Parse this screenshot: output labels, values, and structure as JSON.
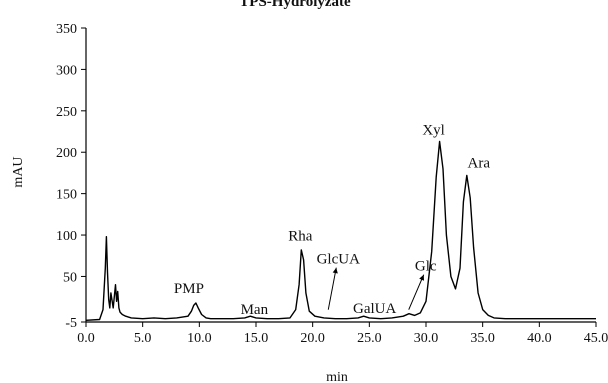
{
  "chart_data": {
    "type": "line",
    "title": "TPS-Hydrolyzate",
    "xlabel": "min",
    "ylabel": "mAU",
    "xlim": [
      0,
      45
    ],
    "ylim": [
      -5,
      350
    ],
    "xticks": [
      "0.0",
      "5.0",
      "10.0",
      "15.0",
      "20.0",
      "25.0",
      "30.0",
      "35.0",
      "40.0",
      "45.0"
    ],
    "yticks": [
      "-5",
      "50",
      "100",
      "150",
      "200",
      "250",
      "300",
      "350"
    ],
    "grid": false,
    "series": [
      {
        "x": [
          0.0,
          1.2,
          1.5,
          1.7,
          1.8,
          1.9,
          2.0,
          2.1,
          2.2,
          2.4,
          2.6,
          2.7,
          2.8,
          2.9,
          3.0,
          3.2,
          3.5,
          4.0,
          5.0,
          6.0,
          7.0,
          8.0,
          9.0,
          9.3,
          9.5,
          9.7,
          9.9,
          10.2,
          10.6,
          11.0,
          12.0,
          13.0,
          14.0,
          14.5,
          15.0,
          16.0,
          17.0,
          18.0,
          18.5,
          18.8,
          19.0,
          19.2,
          19.4,
          19.7,
          20.2,
          21.0,
          22.0,
          23.0,
          24.0,
          24.5,
          25.0,
          26.0,
          27.0,
          28.0,
          28.5,
          29.0,
          29.5,
          30.0,
          30.5,
          30.9,
          31.2,
          31.5,
          31.8,
          32.2,
          32.6,
          33.0,
          33.3,
          33.6,
          33.9,
          34.2,
          34.6,
          35.0,
          35.5,
          36.0,
          37.0,
          38.0,
          40.0,
          42.0,
          44.0,
          45.0
        ],
        "values": [
          -3,
          -2,
          10,
          60,
          98,
          55,
          22,
          12,
          30,
          12,
          40,
          20,
          32,
          12,
          7,
          4,
          2,
          0,
          -1,
          0,
          -1,
          0,
          2,
          8,
          15,
          18,
          12,
          4,
          0,
          -1,
          -1,
          -1,
          0,
          2,
          0,
          -1,
          -1,
          0,
          10,
          40,
          82,
          70,
          30,
          8,
          2,
          0,
          -1,
          -1,
          0,
          2,
          0,
          -1,
          0,
          2,
          5,
          3,
          6,
          20,
          80,
          170,
          213,
          180,
          100,
          50,
          35,
          60,
          140,
          172,
          145,
          85,
          30,
          10,
          3,
          0,
          -1,
          -1,
          -1,
          -1,
          -1,
          -1
        ]
      }
    ],
    "peak_labels": [
      {
        "text": "PMP",
        "x": 9.7,
        "y": 18
      },
      {
        "text": "Man",
        "x": 14.5,
        "y": 2
      },
      {
        "text": "Rha",
        "x": 19.0,
        "y": 84
      },
      {
        "text": "GlcUA",
        "x": 21.2,
        "y": 5
      },
      {
        "text": "GalUA",
        "x": 24.5,
        "y": 2
      },
      {
        "text": "Glc",
        "x": 28.3,
        "y": 5
      },
      {
        "text": "Xyl",
        "x": 31.2,
        "y": 213
      },
      {
        "text": "Ara",
        "x": 33.6,
        "y": 172
      }
    ]
  }
}
